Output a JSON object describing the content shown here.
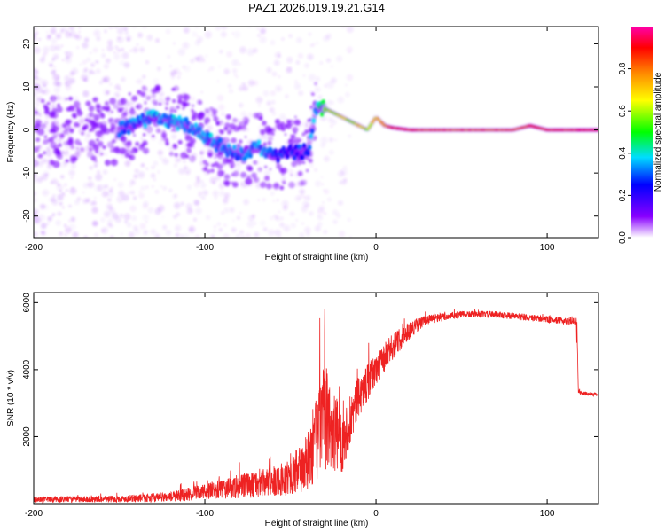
{
  "title": "PAZ1.2026.019.19.21.G14",
  "chart_data": [
    {
      "type": "heatmap",
      "title": "PAZ1.2026.019.19.21.G14",
      "xlabel": "Height of straight line (km)",
      "ylabel": "Frequency (Hz)",
      "xlim": [
        -200,
        130
      ],
      "ylim": [
        -25,
        24
      ],
      "xticks": [
        -200,
        -100,
        0,
        100
      ],
      "yticks": [
        -20,
        -10,
        0,
        10,
        20
      ],
      "colorbar": {
        "label": "Normalized spectral amplitude",
        "range": [
          0,
          1
        ],
        "ticks": [
          "0.0",
          "0.2",
          "0.4",
          "0.6",
          "0.8"
        ],
        "stops": [
          "#ffffff",
          "#8800ff",
          "#0000ff",
          "#00ddff",
          "#00ff00",
          "#ffff00",
          "#ff8800",
          "#ff0000",
          "#ff00aa"
        ]
      },
      "ridge": {
        "x": [
          -150,
          -130,
          -110,
          -95,
          -80,
          -70,
          -60,
          -50,
          -40,
          -35,
          -30,
          -25,
          -20,
          -15,
          -10,
          -5,
          0,
          5,
          10,
          20,
          40,
          60,
          80,
          90,
          100,
          110,
          130
        ],
        "y": [
          0,
          3,
          1,
          -3,
          -6,
          -4,
          -6,
          -5,
          -5,
          5,
          5,
          4,
          3,
          2,
          1,
          0,
          3,
          1,
          0.5,
          0,
          0,
          0,
          0,
          1,
          0,
          0,
          0
        ],
        "amplitude": [
          0.3,
          0.35,
          0.35,
          0.35,
          0.3,
          0.35,
          0.3,
          0.25,
          0.3,
          0.35,
          0.55,
          0.6,
          0.65,
          0.55,
          0.7,
          0.6,
          0.7,
          0.75,
          0.85,
          0.85,
          0.8,
          0.8,
          0.8,
          0.85,
          0.85,
          0.85,
          0.9
        ]
      }
    },
    {
      "type": "line",
      "xlabel": "Height of straight line (km)",
      "ylabel": "SNR (10 * v/v)",
      "xlim": [
        -200,
        130
      ],
      "ylim": [
        0,
        6300
      ],
      "xticks": [
        -200,
        -100,
        0,
        100
      ],
      "yticks": [
        2000,
        4000,
        6000
      ],
      "color": "#ee2222",
      "envelope": {
        "x": [
          -200,
          -150,
          -120,
          -100,
          -80,
          -60,
          -50,
          -40,
          -35,
          -30,
          -25,
          -20,
          -10,
          0,
          10,
          20,
          30,
          50,
          70,
          90,
          110,
          117,
          118,
          120,
          130
        ],
        "mean": [
          120,
          140,
          200,
          350,
          500,
          650,
          800,
          1200,
          2000,
          2600,
          2200,
          1800,
          3200,
          4000,
          4700,
          5200,
          5500,
          5650,
          5650,
          5550,
          5450,
          5450,
          3350,
          3300,
          3250
        ],
        "noise": [
          90,
          100,
          150,
          250,
          350,
          450,
          550,
          900,
          1300,
          1600,
          1300,
          900,
          600,
          500,
          400,
          250,
          150,
          100,
          100,
          100,
          100,
          100,
          80,
          60,
          50
        ]
      }
    }
  ]
}
